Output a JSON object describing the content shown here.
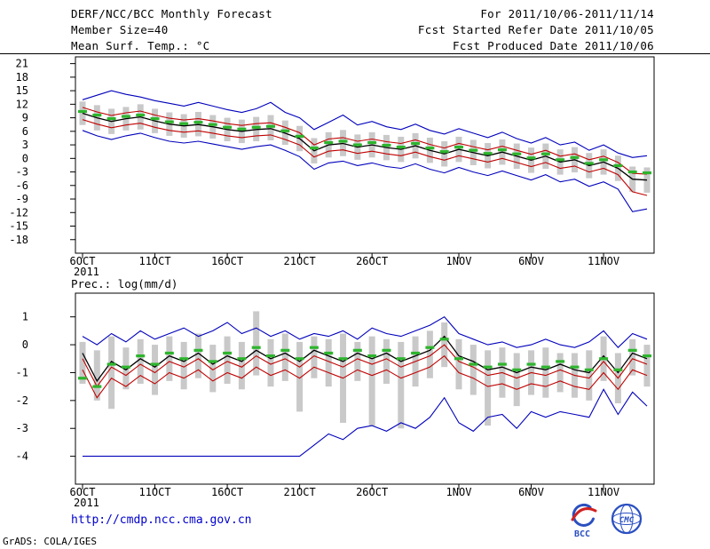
{
  "header": {
    "title": "DERF/NCC/BCC Monthly Forecast",
    "member_size": "Member Size=40",
    "var1_label": "Mean Surf. Temp.: °C",
    "for_range": "For 2011/10/06-2011/11/14",
    "fcst_start": "Fcst Started Refer Date 2011/10/05",
    "fcst_produced": "Fcst Produced Date 2011/10/06"
  },
  "footer": {
    "url": "http://cmdp.ncc.cma.gov.cn",
    "credit": "GrADS: COLA/IGES",
    "logos": [
      {
        "name": "bcc-logo",
        "label": "BCC"
      },
      {
        "name": "cmc-logo",
        "label": "CMC"
      }
    ]
  },
  "colors": {
    "line_blue": "#0000bb",
    "line_red": "#c00000",
    "line_black": "#000000",
    "marker_green": "#2db52d",
    "bar_gray": "#c9c9c9",
    "url_blue": "#0000cc"
  },
  "chart_data": [
    {
      "type": "line",
      "title": "Mean Surf. Temp.: °C",
      "n_points": 40,
      "x_year_label": "2011",
      "x_tick_labels": [
        "6OCT",
        "11OCT",
        "16OCT",
        "21OCT",
        "26OCT",
        "1NOV",
        "6NOV",
        "11NOV"
      ],
      "x_tick_indices": [
        0,
        5,
        10,
        15,
        20,
        26,
        31,
        36
      ],
      "ylim": [
        -21,
        22.5
      ],
      "yticks": [
        21,
        18,
        15,
        12,
        9,
        6,
        3,
        0,
        -3,
        -6,
        -9,
        -12,
        -15,
        -18
      ],
      "grid": false,
      "legend": false,
      "series": [
        {
          "name": "max-member-line",
          "color": "#0000bb",
          "width": 1.1,
          "values": [
            13.0,
            14.0,
            15.0,
            14.2,
            13.6,
            12.8,
            12.2,
            11.6,
            12.4,
            11.6,
            10.8,
            10.2,
            11.0,
            12.4,
            10.2,
            9.0,
            6.4,
            8.0,
            9.6,
            7.4,
            8.2,
            7.0,
            6.4,
            7.6,
            6.2,
            5.4,
            6.6,
            5.6,
            4.6,
            5.8,
            4.4,
            3.4,
            4.6,
            3.0,
            3.6,
            1.8,
            3.0,
            1.2,
            0.2,
            0.6
          ]
        },
        {
          "name": "upper-tercile-line",
          "color": "#c00000",
          "width": 1.1,
          "values": [
            11.3,
            10.3,
            9.5,
            10.1,
            10.5,
            9.6,
            8.9,
            8.5,
            8.8,
            8.3,
            7.7,
            7.3,
            7.7,
            7.9,
            6.9,
            5.7,
            3.0,
            4.3,
            4.6,
            3.8,
            4.3,
            3.7,
            3.3,
            4.1,
            3.1,
            2.3,
            3.3,
            2.6,
            1.9,
            2.7,
            1.8,
            0.9,
            1.8,
            0.5,
            1.0,
            -0.3,
            0.5,
            -0.9,
            -3.3,
            -3.5
          ]
        },
        {
          "name": "ensemble-mean-line",
          "color": "#000000",
          "width": 1.3,
          "values": [
            10.0,
            9.0,
            8.2,
            8.8,
            9.2,
            8.3,
            7.6,
            7.2,
            7.5,
            7.0,
            6.4,
            6.0,
            6.4,
            6.6,
            5.6,
            4.4,
            1.7,
            3.0,
            3.3,
            2.5,
            3.0,
            2.4,
            2.0,
            2.8,
            1.8,
            1.0,
            2.0,
            1.3,
            0.6,
            1.4,
            0.5,
            -0.4,
            0.5,
            -0.8,
            -0.3,
            -1.6,
            -0.8,
            -2.2,
            -4.6,
            -4.8
          ]
        },
        {
          "name": "lower-tercile-line",
          "color": "#c00000",
          "width": 1.1,
          "values": [
            8.6,
            7.6,
            6.8,
            7.4,
            7.8,
            6.9,
            6.2,
            5.8,
            6.1,
            5.6,
            5.0,
            4.6,
            5.0,
            5.2,
            4.2,
            3.0,
            0.3,
            1.6,
            1.9,
            1.1,
            1.6,
            1.0,
            0.6,
            1.4,
            0.4,
            -0.4,
            0.6,
            -0.1,
            -0.8,
            0.0,
            -0.9,
            -1.8,
            -0.9,
            -2.2,
            -1.7,
            -3.0,
            -2.2,
            -3.6,
            -7.4,
            -8.2
          ]
        },
        {
          "name": "min-member-line",
          "color": "#0000bb",
          "width": 1.1,
          "values": [
            6.2,
            5.0,
            4.2,
            5.0,
            5.6,
            4.6,
            3.8,
            3.4,
            3.8,
            3.2,
            2.6,
            2.0,
            2.6,
            3.0,
            1.8,
            0.4,
            -2.4,
            -1.0,
            -0.6,
            -1.6,
            -1.0,
            -1.8,
            -2.2,
            -1.2,
            -2.4,
            -3.2,
            -2.0,
            -3.0,
            -3.8,
            -2.8,
            -3.8,
            -4.8,
            -3.6,
            -5.2,
            -4.6,
            -6.2,
            -5.2,
            -6.8,
            -11.8,
            -11.2
          ]
        }
      ],
      "markers": {
        "name": "climate-normal-marker",
        "color": "#2db52d",
        "values": [
          10.4,
          9.6,
          8.8,
          9.3,
          9.6,
          8.8,
          8.1,
          7.7,
          8.0,
          7.5,
          6.9,
          6.5,
          6.9,
          7.1,
          6.1,
          4.9,
          2.3,
          3.5,
          3.8,
          3.0,
          3.5,
          2.9,
          2.5,
          3.3,
          2.3,
          1.5,
          2.5,
          1.8,
          1.1,
          1.9,
          1.0,
          0.1,
          1.0,
          -0.3,
          0.2,
          -1.1,
          -0.3,
          -1.6,
          -3.0,
          -3.2
        ]
      },
      "bars": {
        "name": "ensemble-spread-bar",
        "color": "#c9c9c9",
        "high": [
          12.6,
          11.8,
          11.0,
          11.4,
          12.0,
          11.0,
          10.2,
          9.8,
          10.3,
          9.6,
          9.0,
          8.6,
          9.2,
          9.6,
          8.4,
          7.2,
          4.5,
          5.8,
          6.3,
          5.3,
          5.8,
          5.2,
          4.8,
          5.6,
          4.6,
          3.8,
          4.8,
          4.1,
          3.4,
          4.2,
          3.3,
          2.4,
          3.3,
          2.0,
          2.5,
          1.2,
          2.0,
          0.6,
          -1.8,
          -2.0
        ],
        "low": [
          7.4,
          6.2,
          5.4,
          6.2,
          6.4,
          5.6,
          5.0,
          4.6,
          4.9,
          4.4,
          3.8,
          3.4,
          3.8,
          4.0,
          3.0,
          1.6,
          -1.1,
          0.2,
          0.5,
          -0.3,
          0.2,
          -0.4,
          -0.8,
          0.0,
          -1.0,
          -1.8,
          -0.8,
          -1.5,
          -2.2,
          -1.4,
          -2.3,
          -3.2,
          -2.3,
          -3.6,
          -3.1,
          -4.4,
          -3.6,
          -5.0,
          -7.4,
          -7.6
        ]
      }
    },
    {
      "type": "line",
      "title": "Prec.: log(mm/d)",
      "n_points": 40,
      "x_year_label": "2011",
      "x_tick_labels": [
        "6OCT",
        "11OCT",
        "16OCT",
        "21OCT",
        "26OCT",
        "1NOV",
        "6NOV",
        "11NOV"
      ],
      "x_tick_indices": [
        0,
        5,
        10,
        15,
        20,
        26,
        31,
        36
      ],
      "ylim": [
        -5.0,
        1.85
      ],
      "yticks": [
        1,
        0,
        -1,
        -2,
        -3,
        -4
      ],
      "grid": false,
      "legend": false,
      "series": [
        {
          "name": "max-member-line",
          "color": "#0000bb",
          "width": 1.1,
          "values": [
            0.3,
            0.0,
            0.4,
            0.1,
            0.5,
            0.2,
            0.4,
            0.6,
            0.3,
            0.5,
            0.8,
            0.4,
            0.6,
            0.3,
            0.5,
            0.2,
            0.4,
            0.3,
            0.5,
            0.2,
            0.6,
            0.4,
            0.3,
            0.5,
            0.7,
            1.0,
            0.4,
            0.2,
            0.0,
            0.1,
            -0.1,
            0.0,
            0.2,
            0.0,
            -0.1,
            0.1,
            0.5,
            -0.1,
            0.4,
            0.2
          ]
        },
        {
          "name": "ensemble-mean-line",
          "color": "#000000",
          "width": 1.3,
          "values": [
            -0.3,
            -1.3,
            -0.6,
            -0.9,
            -0.5,
            -0.8,
            -0.4,
            -0.6,
            -0.3,
            -0.7,
            -0.4,
            -0.6,
            -0.2,
            -0.5,
            -0.3,
            -0.6,
            -0.2,
            -0.4,
            -0.6,
            -0.3,
            -0.5,
            -0.3,
            -0.6,
            -0.4,
            -0.2,
            0.3,
            -0.4,
            -0.6,
            -0.9,
            -0.8,
            -1.0,
            -0.8,
            -0.9,
            -0.7,
            -0.9,
            -1.0,
            -0.4,
            -1.0,
            -0.3,
            -0.5
          ]
        },
        {
          "name": "upper-tercile-line",
          "color": "#c00000",
          "width": 1.1,
          "values": [
            -0.5,
            -1.5,
            -0.8,
            -1.1,
            -0.7,
            -1.0,
            -0.6,
            -0.8,
            -0.5,
            -0.9,
            -0.6,
            -0.8,
            -0.4,
            -0.7,
            -0.5,
            -0.8,
            -0.4,
            -0.6,
            -0.8,
            -0.5,
            -0.7,
            -0.5,
            -0.8,
            -0.6,
            -0.4,
            0.0,
            -0.6,
            -0.8,
            -1.1,
            -1.0,
            -1.2,
            -1.0,
            -1.1,
            -0.9,
            -1.1,
            -1.2,
            -0.6,
            -1.2,
            -0.5,
            -0.7
          ]
        },
        {
          "name": "lower-tercile-line",
          "color": "#c00000",
          "width": 1.1,
          "values": [
            -0.9,
            -1.9,
            -1.2,
            -1.5,
            -1.1,
            -1.4,
            -1.0,
            -1.2,
            -0.9,
            -1.3,
            -1.0,
            -1.2,
            -0.8,
            -1.1,
            -0.9,
            -1.2,
            -0.8,
            -1.0,
            -1.2,
            -0.9,
            -1.1,
            -0.9,
            -1.2,
            -1.0,
            -0.8,
            -0.4,
            -1.0,
            -1.2,
            -1.5,
            -1.4,
            -1.6,
            -1.4,
            -1.5,
            -1.3,
            -1.5,
            -1.6,
            -1.0,
            -1.6,
            -0.9,
            -1.1
          ]
        },
        {
          "name": "min-member-line",
          "color": "#0000bb",
          "width": 1.1,
          "values": [
            -4.0,
            -4.0,
            -4.0,
            -4.0,
            -4.0,
            -4.0,
            -4.0,
            -4.0,
            -4.0,
            -4.0,
            -4.0,
            -4.0,
            -4.0,
            -4.0,
            -4.0,
            -4.0,
            -3.6,
            -3.2,
            -3.4,
            -3.0,
            -2.9,
            -3.1,
            -2.8,
            -3.0,
            -2.6,
            -1.9,
            -2.8,
            -3.1,
            -2.6,
            -2.5,
            -3.0,
            -2.4,
            -2.6,
            -2.4,
            -2.5,
            -2.6,
            -1.6,
            -2.5,
            -1.7,
            -2.2
          ]
        }
      ],
      "markers": {
        "name": "climate-normal-marker",
        "color": "#2db52d",
        "values": [
          -1.2,
          -1.5,
          -0.7,
          -0.8,
          -0.4,
          -0.7,
          -0.3,
          -0.5,
          -0.2,
          -0.6,
          -0.3,
          -0.5,
          -0.1,
          -0.4,
          -0.2,
          -0.5,
          -0.1,
          -0.3,
          -0.5,
          -0.2,
          -0.4,
          -0.2,
          -0.5,
          -0.3,
          -0.1,
          0.2,
          -0.5,
          -0.7,
          -0.8,
          -0.7,
          -0.9,
          -0.7,
          -0.8,
          -0.6,
          -0.8,
          -0.9,
          -0.5,
          -0.9,
          -0.2,
          -0.4
        ]
      },
      "bars": {
        "name": "ensemble-spread-bar",
        "color": "#c9c9c9",
        "high": [
          0.1,
          -0.2,
          0.3,
          -0.1,
          0.2,
          0.0,
          0.3,
          0.1,
          0.4,
          0.0,
          0.3,
          0.1,
          1.2,
          0.2,
          0.4,
          0.1,
          0.3,
          0.2,
          0.4,
          0.1,
          0.3,
          0.2,
          0.1,
          0.3,
          0.5,
          0.8,
          0.2,
          0.0,
          -0.2,
          -0.1,
          -0.3,
          -0.2,
          -0.1,
          -0.3,
          -0.3,
          -0.2,
          0.3,
          -0.3,
          0.2,
          0.0
        ],
        "low": [
          -1.4,
          -2.0,
          -2.3,
          -1.6,
          -1.4,
          -1.8,
          -1.3,
          -1.6,
          -1.2,
          -1.7,
          -1.4,
          -1.6,
          -1.1,
          -1.5,
          -1.3,
          -2.4,
          -1.2,
          -1.5,
          -2.8,
          -1.3,
          -2.9,
          -1.4,
          -3.0,
          -1.5,
          -1.2,
          -0.8,
          -1.6,
          -1.8,
          -2.9,
          -1.9,
          -2.2,
          -1.8,
          -1.9,
          -1.7,
          -1.9,
          -2.0,
          -1.3,
          -2.1,
          -1.1,
          -1.5
        ]
      }
    }
  ]
}
